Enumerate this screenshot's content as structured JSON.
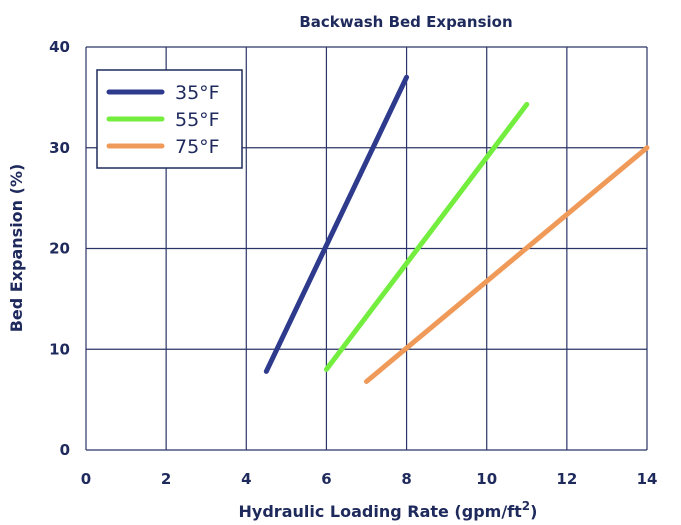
{
  "chart_data": {
    "type": "line",
    "title": "Backwash Bed Expansion",
    "xlabel": "Hydraulic Loading Rate (gpm/ft",
    "xlabel_sup": "2",
    "xlabel_end": ")",
    "ylabel": "Bed Expansion (%)",
    "xlim": [
      0,
      14
    ],
    "ylim": [
      0,
      40
    ],
    "xticks": [
      0,
      2,
      4,
      6,
      8,
      10,
      12,
      14
    ],
    "yticks": [
      0,
      10,
      20,
      30,
      40
    ],
    "grid": true,
    "legend_position": "top-left",
    "series": [
      {
        "name": "35°F",
        "color": "#2e3a8c",
        "x": [
          4.5,
          8
        ],
        "y": [
          7.8,
          37
        ]
      },
      {
        "name": "55°F",
        "color": "#74ee3e",
        "x": [
          6,
          11
        ],
        "y": [
          8,
          34.3
        ]
      },
      {
        "name": "75°F",
        "color": "#f09a5a",
        "x": [
          7,
          14
        ],
        "y": [
          6.8,
          30
        ]
      }
    ]
  }
}
